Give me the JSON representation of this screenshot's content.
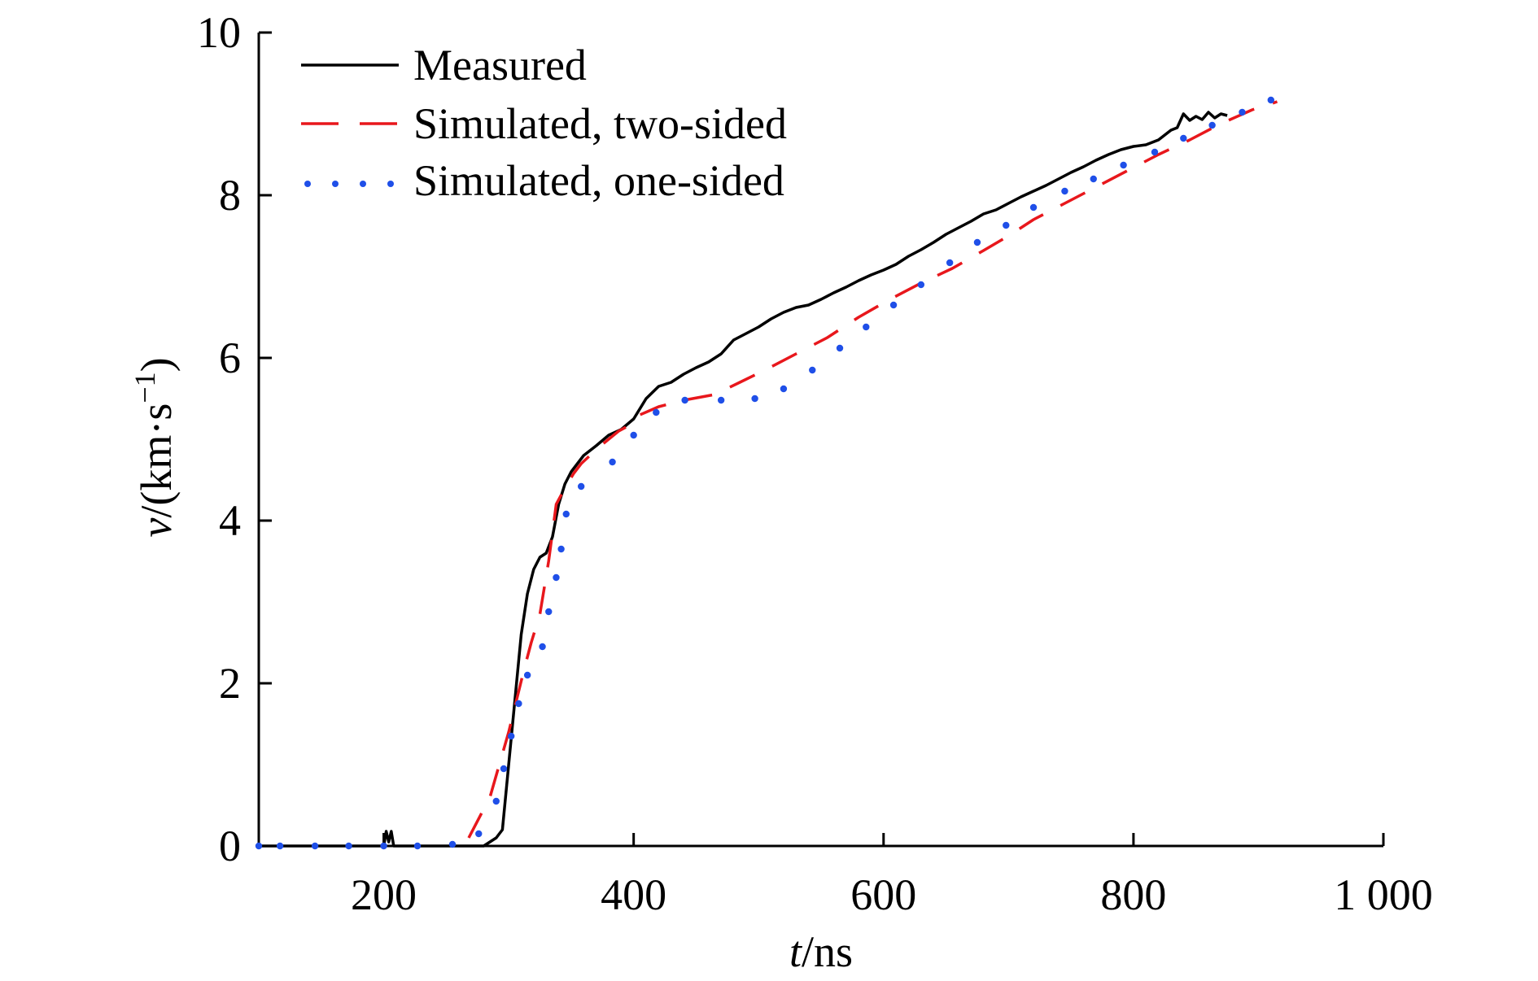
{
  "chart_data": {
    "type": "line",
    "xlabel": {
      "italic": "t",
      "rest": "/ns"
    },
    "ylabel": {
      "italic": "v",
      "rest": "/(km·s",
      "sup": "−1",
      "close": ")"
    },
    "xlim": [
      100,
      1000
    ],
    "ylim": [
      0,
      10
    ],
    "xticks": [
      200,
      400,
      600,
      800,
      1000
    ],
    "xtick_labels": [
      "200",
      "400",
      "600",
      "800",
      "1 000"
    ],
    "yticks": [
      0,
      2,
      4,
      6,
      8,
      10
    ],
    "ytick_labels": [
      "0",
      "2",
      "4",
      "6",
      "8",
      "10"
    ],
    "grid": false,
    "legend_position": "top-left",
    "series": [
      {
        "name": "Measured",
        "style": "solid",
        "color": "#000000",
        "points": [
          [
            100,
            0
          ],
          [
            200,
            0
          ],
          [
            202,
            0.18
          ],
          [
            204,
            0.05
          ],
          [
            206,
            0.18
          ],
          [
            208,
            0
          ],
          [
            280,
            0
          ],
          [
            290,
            0.1
          ],
          [
            295,
            0.2
          ],
          [
            300,
            1.0
          ],
          [
            305,
            1.8
          ],
          [
            310,
            2.6
          ],
          [
            315,
            3.1
          ],
          [
            320,
            3.4
          ],
          [
            325,
            3.55
          ],
          [
            330,
            3.6
          ],
          [
            335,
            3.8
          ],
          [
            340,
            4.2
          ],
          [
            345,
            4.45
          ],
          [
            350,
            4.6
          ],
          [
            360,
            4.8
          ],
          [
            370,
            4.92
          ],
          [
            380,
            5.05
          ],
          [
            390,
            5.12
          ],
          [
            400,
            5.25
          ],
          [
            410,
            5.5
          ],
          [
            420,
            5.65
          ],
          [
            430,
            5.7
          ],
          [
            440,
            5.8
          ],
          [
            450,
            5.88
          ],
          [
            460,
            5.95
          ],
          [
            470,
            6.05
          ],
          [
            480,
            6.22
          ],
          [
            490,
            6.3
          ],
          [
            500,
            6.38
          ],
          [
            510,
            6.48
          ],
          [
            520,
            6.56
          ],
          [
            530,
            6.62
          ],
          [
            540,
            6.65
          ],
          [
            550,
            6.72
          ],
          [
            560,
            6.8
          ],
          [
            570,
            6.87
          ],
          [
            580,
            6.95
          ],
          [
            590,
            7.02
          ],
          [
            600,
            7.08
          ],
          [
            610,
            7.15
          ],
          [
            620,
            7.25
          ],
          [
            630,
            7.33
          ],
          [
            640,
            7.42
          ],
          [
            650,
            7.52
          ],
          [
            660,
            7.6
          ],
          [
            670,
            7.68
          ],
          [
            680,
            7.77
          ],
          [
            690,
            7.82
          ],
          [
            700,
            7.9
          ],
          [
            710,
            7.98
          ],
          [
            720,
            8.05
          ],
          [
            730,
            8.12
          ],
          [
            740,
            8.2
          ],
          [
            750,
            8.28
          ],
          [
            760,
            8.35
          ],
          [
            770,
            8.43
          ],
          [
            780,
            8.5
          ],
          [
            790,
            8.56
          ],
          [
            800,
            8.6
          ],
          [
            810,
            8.62
          ],
          [
            820,
            8.68
          ],
          [
            830,
            8.8
          ],
          [
            835,
            8.83
          ],
          [
            840,
            9.0
          ],
          [
            845,
            8.92
          ],
          [
            850,
            8.97
          ],
          [
            855,
            8.93
          ],
          [
            860,
            9.02
          ],
          [
            865,
            8.95
          ],
          [
            870,
            9.0
          ],
          [
            875,
            8.98
          ]
        ]
      },
      {
        "name": "Simulated, two-sided",
        "style": "dashed",
        "color": "#e8171c",
        "points": [
          [
            268,
            0.1
          ],
          [
            285,
            0.6
          ],
          [
            300,
            1.4
          ],
          [
            312,
            2.15
          ],
          [
            318,
            2.5
          ],
          [
            325,
            2.85
          ],
          [
            332,
            3.5
          ],
          [
            338,
            4.2
          ],
          [
            345,
            4.4
          ],
          [
            352,
            4.58
          ],
          [
            358,
            4.7
          ],
          [
            372,
            4.9
          ],
          [
            388,
            5.1
          ],
          [
            400,
            5.2
          ],
          [
            405,
            5.3
          ],
          [
            420,
            5.4
          ],
          [
            440,
            5.48
          ],
          [
            465,
            5.55
          ],
          [
            485,
            5.7
          ],
          [
            505,
            5.85
          ],
          [
            530,
            6.05
          ],
          [
            555,
            6.25
          ],
          [
            580,
            6.5
          ],
          [
            605,
            6.72
          ],
          [
            630,
            6.92
          ],
          [
            655,
            7.1
          ],
          [
            680,
            7.32
          ],
          [
            700,
            7.5
          ],
          [
            720,
            7.7
          ],
          [
            745,
            7.9
          ],
          [
            770,
            8.1
          ],
          [
            795,
            8.3
          ],
          [
            820,
            8.5
          ],
          [
            845,
            8.68
          ],
          [
            870,
            8.88
          ],
          [
            895,
            9.05
          ],
          [
            915,
            9.15
          ]
        ]
      },
      {
        "name": "Simulated, one-sided",
        "style": "dotted",
        "color": "#1f4fe8",
        "points": [
          [
            100,
            0
          ],
          [
            117,
            0
          ],
          [
            145,
            0
          ],
          [
            172,
            0
          ],
          [
            200,
            0
          ],
          [
            227,
            0
          ],
          [
            255,
            0.02
          ],
          [
            276,
            0.15
          ],
          [
            290,
            0.55
          ],
          [
            296,
            0.95
          ],
          [
            302,
            1.35
          ],
          [
            308,
            1.75
          ],
          [
            315,
            2.1
          ],
          [
            327,
            2.45
          ],
          [
            332,
            2.88
          ],
          [
            338,
            3.3
          ],
          [
            342,
            3.65
          ],
          [
            346,
            4.08
          ],
          [
            358,
            4.42
          ],
          [
            383,
            4.72
          ],
          [
            400,
            5.05
          ],
          [
            418,
            5.33
          ],
          [
            441,
            5.48
          ],
          [
            470,
            5.48
          ],
          [
            497,
            5.5
          ],
          [
            520,
            5.62
          ],
          [
            543,
            5.85
          ],
          [
            565,
            6.12
          ],
          [
            586,
            6.38
          ],
          [
            608,
            6.65
          ],
          [
            630,
            6.9
          ],
          [
            653,
            7.17
          ],
          [
            675,
            7.42
          ],
          [
            698,
            7.63
          ],
          [
            720,
            7.85
          ],
          [
            745,
            8.05
          ],
          [
            768,
            8.2
          ],
          [
            792,
            8.37
          ],
          [
            817,
            8.53
          ],
          [
            840,
            8.7
          ],
          [
            863,
            8.86
          ],
          [
            887,
            9.02
          ],
          [
            910,
            9.17
          ]
        ]
      }
    ]
  }
}
